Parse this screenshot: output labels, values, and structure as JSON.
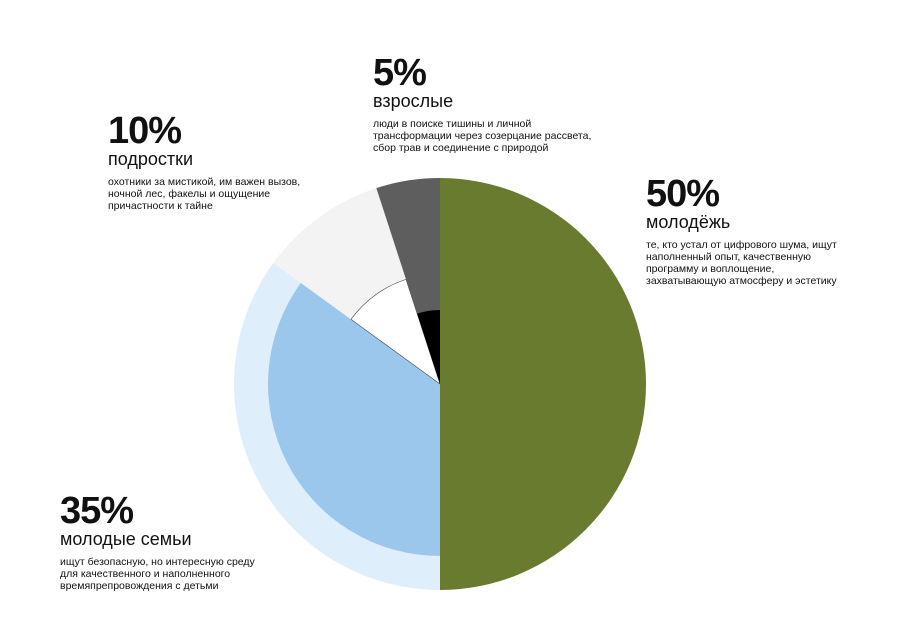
{
  "chart_data": {
    "type": "pie",
    "categories": [
      "молодёжь",
      "молодые семьи",
      "подростки",
      "взрослые"
    ],
    "values": [
      50,
      35,
      10,
      5
    ],
    "value_labels": [
      "50%",
      "35%",
      "10%",
      "5%"
    ],
    "descriptions": [
      [
        "те, кто устал от цифрового шума, ищут",
        "наполненный опыт, качественную",
        "программу и воплощение,",
        "захватывающую атмосферу и эстетику"
      ],
      [
        "ищут безопасную, но интересную среду",
        "для качественного и наполненного",
        "времяпрепровождения с детьми"
      ],
      [
        "охотники за мистикой, им важен вызов,",
        "ночной лес, факелы и ощущение",
        "причастности к тайне"
      ],
      [
        "люди в поиске тишины и личной",
        "трансформации через созерцание рассвета,",
        "сбор трав и соединение с природой"
      ]
    ],
    "colors": [
      "#687b2e",
      "#dfeefb",
      "#f3f3f3",
      "#5e5e5e"
    ],
    "inner_colors": [
      null,
      "#9cc7ec",
      "#ffffff",
      "#000000"
    ]
  }
}
